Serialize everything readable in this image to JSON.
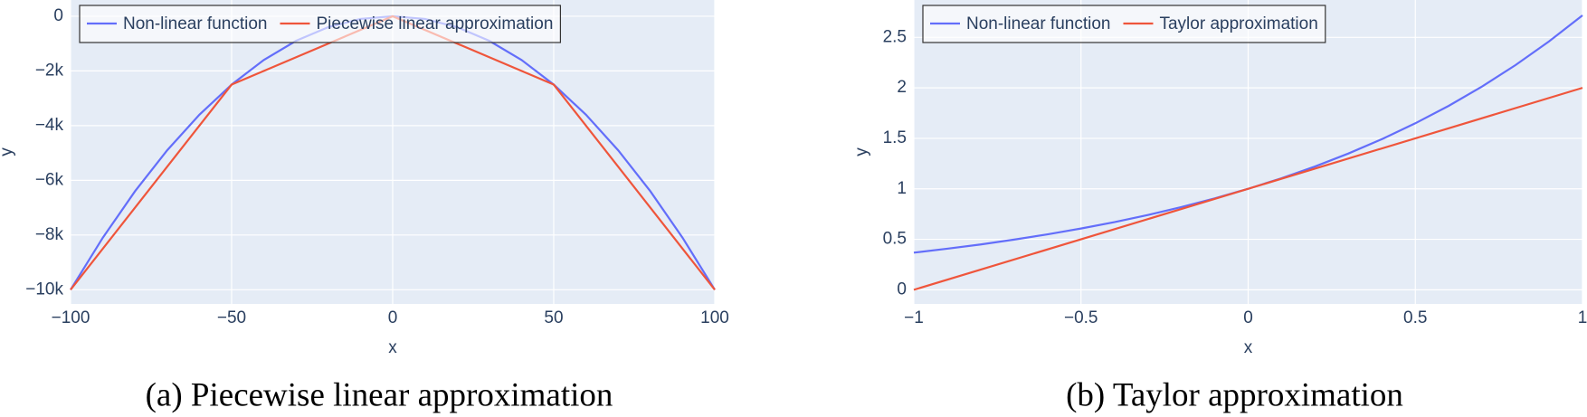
{
  "chart_data": [
    {
      "type": "line",
      "caption": "(a) Piecewise linear approximation",
      "x_label": "x",
      "y_label": "y",
      "xlim": [
        -100,
        100
      ],
      "ylim": [
        -10519,
        593
      ],
      "xticks": [
        {
          "value": -100,
          "label": "−100"
        },
        {
          "value": -50,
          "label": "−50"
        },
        0,
        50,
        100
      ],
      "yticks": [
        0,
        {
          "value": -2000,
          "label": "−2k"
        },
        {
          "value": -4000,
          "label": "−4k"
        },
        {
          "value": -6000,
          "label": "−6k"
        },
        {
          "value": -8000,
          "label": "−8k"
        },
        {
          "value": -10000,
          "label": "−10k"
        }
      ],
      "grid": true,
      "legend": "top-left",
      "series": [
        {
          "name": "Non-linear function",
          "color": "#636efa",
          "x": [
            -100,
            -90,
            -80,
            -70,
            -60,
            -50,
            -40,
            -30,
            -20,
            -10,
            0,
            10,
            20,
            30,
            40,
            50,
            60,
            70,
            80,
            90,
            100
          ],
          "values": [
            -10000,
            -8100,
            -6400,
            -4900,
            -3600,
            -2500,
            -1600,
            -900,
            -400,
            -100,
            0,
            -100,
            -400,
            -900,
            -1600,
            -2500,
            -3600,
            -4900,
            -6400,
            -8100,
            -10000
          ]
        },
        {
          "name": "Piecewise linear approximation",
          "color": "#ef553b",
          "x": [
            -100,
            -50,
            0,
            50,
            100
          ],
          "values": [
            -10000,
            -2500,
            0,
            -2500,
            -10000
          ]
        }
      ]
    },
    {
      "type": "line",
      "caption": "(b) Taylor approximation",
      "x_label": "x",
      "y_label": "y",
      "xlim": [
        -1,
        1
      ],
      "ylim": [
        -0.14,
        2.87
      ],
      "xticks": [
        {
          "value": -1,
          "label": "−1"
        },
        {
          "value": -0.5,
          "label": "−0.5"
        },
        0,
        0.5,
        1
      ],
      "yticks": [
        0,
        0.5,
        1,
        1.5,
        2,
        2.5
      ],
      "grid": true,
      "legend": "top-left",
      "series": [
        {
          "name": "Non-linear function",
          "color": "#636efa",
          "x": [
            -1,
            -0.9,
            -0.8,
            -0.7,
            -0.6,
            -0.5,
            -0.4,
            -0.3,
            -0.2,
            -0.1,
            0,
            0.1,
            0.2,
            0.3,
            0.4,
            0.5,
            0.6,
            0.7,
            0.8,
            0.9,
            1
          ],
          "values": [
            0.368,
            0.407,
            0.449,
            0.497,
            0.549,
            0.607,
            0.67,
            0.741,
            0.819,
            0.905,
            1,
            1.105,
            1.221,
            1.35,
            1.492,
            1.649,
            1.822,
            2.014,
            2.226,
            2.46,
            2.718
          ]
        },
        {
          "name": "Taylor approximation",
          "color": "#ef553b",
          "x": [
            -1,
            1
          ],
          "values": [
            0,
            2
          ]
        }
      ]
    }
  ]
}
